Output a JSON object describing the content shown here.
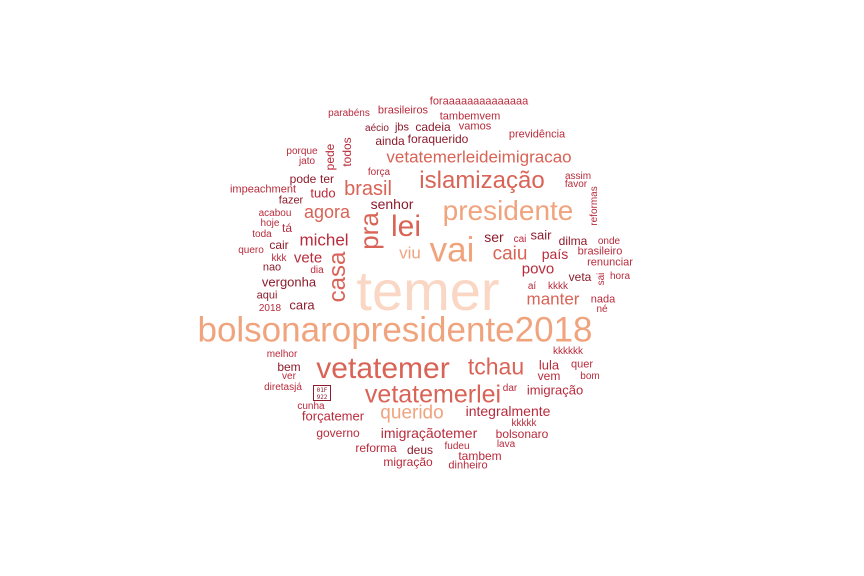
{
  "palette": {
    "lightest": "#fad7c4",
    "light": "#f0a47e",
    "mid": "#d96356",
    "dark": "#b82b3c",
    "darkest": "#8c1c2c"
  },
  "words": [
    "temer",
    "bolsonaropresidente2018",
    "vai",
    "presidente",
    "vetatemer",
    "lei",
    "pra",
    "islamização",
    "vetatemerlei",
    "casa",
    "tchau",
    "caiu",
    "querido",
    "brasil",
    "agora",
    "vetatemerleideimigracao",
    "michel",
    "manter",
    "viu",
    "povo",
    "vete",
    "país",
    "integralmente",
    "imigraçãotemer",
    "senhor",
    "ser",
    "sair",
    "lula",
    "imigração",
    "tudo",
    "forçatemer",
    "governo",
    "vergonha",
    "cara",
    "vem",
    "dilma",
    "bolsonaro",
    "veta",
    "ainda",
    "foraquerido",
    "reforma",
    "migração",
    "todos",
    "pede",
    "cadeia",
    "vamos",
    "tambemvem",
    "foraaaaaaaaaaaaaa",
    "brasileiros",
    "parabéns",
    "aécio",
    "jbs",
    "previdência",
    "porque",
    "jato",
    "pode",
    "ter",
    "força",
    "assim",
    "favor",
    "impeachment",
    "fazer",
    "reformas",
    "acabou",
    "hoje",
    "toda",
    "tá",
    "quero",
    "kkk",
    "nao",
    "dia",
    "cair",
    "cai",
    "onde",
    "brasileiro",
    "renunciar",
    "sai",
    "hora",
    "aqui",
    "aí",
    "kkkk",
    "2018",
    "nada",
    "né",
    "melhor",
    "bem",
    "ver",
    "kkkkkk",
    "quer",
    "bom",
    "diretasjá",
    "dar",
    "cunha",
    "kkkkk",
    "fudeu",
    "lava",
    "deus",
    "tambem",
    "dinheiro"
  ],
  "emoji_glyph": "01F 922"
}
